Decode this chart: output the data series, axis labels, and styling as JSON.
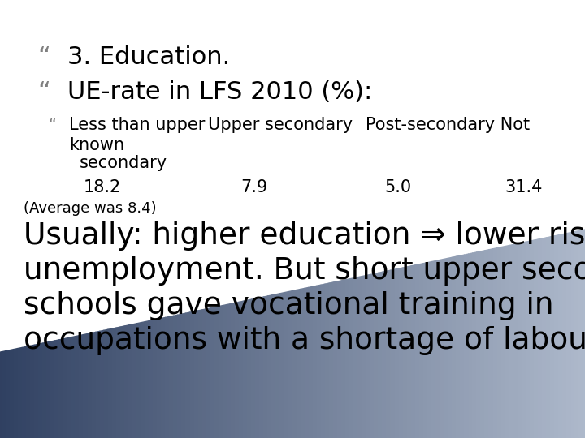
{
  "background_color": "#ffffff",
  "bullet_color": "#808080",
  "bullet1": "3. Education.",
  "bullet2": "UE-rate in LFS 2010 (%):",
  "col1_header": "Less than upper",
  "col2_header": "Upper secondary",
  "col3_header": "Post-secondary Not",
  "col1_sub1": "known",
  "col1_sub2": "secondary",
  "col1_val": "18.2",
  "col2_val": "7.9",
  "col3_val": "5.0",
  "col4_val": "31.4",
  "avg_line": "(Average was 8.4)",
  "big_text_line1": "Usually: higher education ⇒ lower risk of",
  "big_text_line2": "unemployment. But short upper secondary",
  "big_text_line3": "schools gave vocational training in",
  "big_text_line4": "occupations with a shortage of labour supply.",
  "bullet_font_size_large": 22,
  "bullet_font_size_medium": 15,
  "big_text_font_size": 27,
  "values_font_size": 15,
  "avg_font_size": 13,
  "footer_dark": [
    0.09,
    0.16,
    0.3
  ],
  "footer_light": [
    0.78,
    0.82,
    0.88
  ]
}
